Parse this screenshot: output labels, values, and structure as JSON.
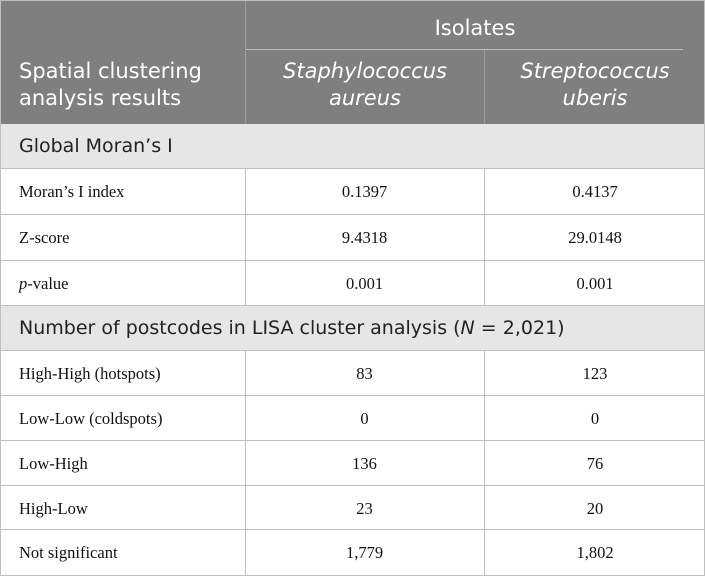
{
  "header": {
    "group_label": "Isolates",
    "row_label": "Spatial clustering analysis results",
    "col1": "Staphylococcus aureus",
    "col2": "Streptococcus uberis"
  },
  "section1": {
    "title": "Global Moran’s I",
    "rows": [
      {
        "label": "Moran’s I index",
        "a": "0.1397",
        "b": "0.4137"
      },
      {
        "label": "Z-score",
        "a": "9.4318",
        "b": "29.0148"
      },
      {
        "label_italic": "p",
        "label_rest": "-value",
        "a": "0.001",
        "b": "0.001"
      }
    ]
  },
  "section2": {
    "title_pre": "Number of postcodes in LISA cluster analysis (",
    "title_n": "N",
    "title_post": " = 2,021)",
    "rows": [
      {
        "label": "High-High (hotspots)",
        "a": "83",
        "b": "123"
      },
      {
        "label": "Low-Low (coldspots)",
        "a": "0",
        "b": "0"
      },
      {
        "label": "Low-High",
        "a": "136",
        "b": "76"
      },
      {
        "label": "High-Low",
        "a": "23",
        "b": "20"
      },
      {
        "label": "Not significant",
        "a": "1,779",
        "b": "1,802"
      }
    ]
  }
}
